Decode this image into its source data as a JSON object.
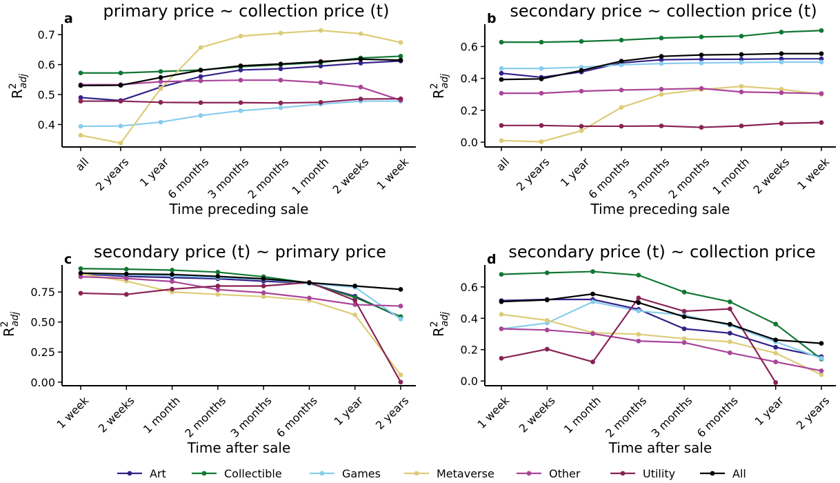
{
  "legend": {
    "placement": "bottom-center",
    "entries": [
      {
        "name": "Art",
        "color": "#332288"
      },
      {
        "name": "Collectible",
        "color": "#117733"
      },
      {
        "name": "Games",
        "color": "#88CCEE"
      },
      {
        "name": "Metaverse",
        "color": "#DDCC77"
      },
      {
        "name": "Other",
        "color": "#AA4499"
      },
      {
        "name": "Utility",
        "color": "#882255"
      },
      {
        "name": "All",
        "color": "#000000"
      }
    ]
  },
  "chart_data": [
    {
      "panel": "a",
      "type": "line",
      "title": "primary price ~ collection price (t)",
      "xlabel": "Time preceding sale",
      "ylabel": "R²adj",
      "categories": [
        "all",
        "2 years",
        "1 year",
        "6 months",
        "3 months",
        "2 months",
        "1 month",
        "2 weeks",
        "1 week"
      ],
      "ylim": [
        0.325,
        0.735
      ],
      "yticks": [
        0.4,
        0.5,
        0.6,
        0.7
      ],
      "ytick_labels": [
        "0.4",
        "0.5",
        "0.6",
        "0.7"
      ],
      "grid": false,
      "series": [
        {
          "name": "Art",
          "values": [
            0.49,
            0.48,
            0.525,
            0.56,
            0.582,
            0.586,
            0.595,
            0.605,
            0.612
          ]
        },
        {
          "name": "Collectible",
          "values": [
            0.572,
            0.572,
            0.577,
            0.582,
            0.593,
            0.6,
            0.607,
            0.622,
            0.628
          ]
        },
        {
          "name": "Games",
          "values": [
            0.394,
            0.395,
            0.408,
            0.43,
            0.446,
            0.456,
            0.468,
            0.478,
            0.478
          ]
        },
        {
          "name": "Metaverse",
          "values": [
            0.364,
            0.338,
            0.52,
            0.657,
            0.695,
            0.705,
            0.714,
            0.703,
            0.674
          ]
        },
        {
          "name": "Other",
          "values": [
            0.533,
            0.533,
            0.543,
            0.546,
            0.548,
            0.548,
            0.54,
            0.525,
            0.481
          ]
        },
        {
          "name": "Utility",
          "values": [
            0.478,
            0.478,
            0.474,
            0.473,
            0.473,
            0.472,
            0.474,
            0.485,
            0.486
          ]
        },
        {
          "name": "All",
          "values": [
            0.53,
            0.531,
            0.557,
            0.581,
            0.596,
            0.602,
            0.61,
            0.618,
            0.615
          ]
        }
      ]
    },
    {
      "panel": "b",
      "type": "line",
      "title": "secondary price ~ collection price (t)",
      "xlabel": "Time preceding sale",
      "ylabel": "R²adj",
      "categories": [
        "all",
        "2 years",
        "1 year",
        "6 months",
        "3 months",
        "2 months",
        "1 month",
        "2 weeks",
        "1 week"
      ],
      "ylim": [
        -0.03,
        0.74
      ],
      "yticks": [
        0.0,
        0.2,
        0.4,
        0.6
      ],
      "ytick_labels": [
        "0.0",
        "0.2",
        "0.4",
        "0.6"
      ],
      "grid": false,
      "series": [
        {
          "name": "Art",
          "values": [
            0.432,
            0.407,
            0.44,
            0.497,
            0.517,
            0.52,
            0.52,
            0.523,
            0.523
          ]
        },
        {
          "name": "Collectible",
          "values": [
            0.627,
            0.627,
            0.632,
            0.64,
            0.653,
            0.66,
            0.665,
            0.69,
            0.7
          ]
        },
        {
          "name": "Games",
          "values": [
            0.462,
            0.462,
            0.47,
            0.485,
            0.493,
            0.497,
            0.5,
            0.502,
            0.502
          ]
        },
        {
          "name": "Metaverse",
          "values": [
            0.01,
            0.003,
            0.072,
            0.218,
            0.3,
            0.33,
            0.35,
            0.332,
            0.3
          ]
        },
        {
          "name": "Other",
          "values": [
            0.307,
            0.307,
            0.32,
            0.327,
            0.332,
            0.337,
            0.315,
            0.31,
            0.305
          ]
        },
        {
          "name": "Utility",
          "values": [
            0.105,
            0.105,
            0.1,
            0.1,
            0.102,
            0.093,
            0.102,
            0.118,
            0.123
          ]
        },
        {
          "name": "All",
          "values": [
            0.393,
            0.397,
            0.45,
            0.508,
            0.538,
            0.547,
            0.55,
            0.555,
            0.555
          ]
        }
      ]
    },
    {
      "panel": "c",
      "type": "line",
      "title": "secondary price (t) ~ primary price",
      "xlabel": "Time after sale",
      "ylabel": "R²adj",
      "categories": [
        "1 week",
        "2 weeks",
        "1 month",
        "2 months",
        "3 months",
        "6 months",
        "1 year",
        "2 years"
      ],
      "ylim": [
        -0.03,
        0.975
      ],
      "yticks": [
        0.0,
        0.25,
        0.5,
        0.75
      ],
      "ytick_labels": [
        "0.00",
        "0.25",
        "0.50",
        "0.75"
      ],
      "grid": false,
      "series": [
        {
          "name": "Art",
          "values": [
            0.9,
            0.88,
            0.87,
            0.86,
            0.84,
            0.822,
            0.715,
            0.537
          ]
        },
        {
          "name": "Collectible",
          "values": [
            0.945,
            0.94,
            0.932,
            0.915,
            0.877,
            0.825,
            0.705,
            0.545
          ]
        },
        {
          "name": "Games",
          "values": [
            0.906,
            0.893,
            0.885,
            0.87,
            0.857,
            0.82,
            0.79,
            0.525
          ]
        },
        {
          "name": "Metaverse",
          "values": [
            0.9,
            0.84,
            0.75,
            0.73,
            0.712,
            0.68,
            0.56,
            0.06
          ]
        },
        {
          "name": "Other",
          "values": [
            0.877,
            0.863,
            0.837,
            0.77,
            0.744,
            0.7,
            0.645,
            0.633
          ]
        },
        {
          "name": "Utility",
          "values": [
            0.74,
            0.73,
            0.774,
            0.8,
            0.8,
            0.83,
            0.68,
            0.0
          ]
        },
        {
          "name": "All",
          "values": [
            0.907,
            0.9,
            0.896,
            0.88,
            0.86,
            0.827,
            0.8,
            0.772
          ]
        }
      ]
    },
    {
      "panel": "d",
      "type": "line",
      "title": "secondary price (t) ~ collection price",
      "xlabel": "Time after sale",
      "ylabel": "R²adj",
      "categories": [
        "1 week",
        "2 weeks",
        "1 month",
        "2 months",
        "3 months",
        "6 months",
        "1 year",
        "2 years"
      ],
      "ylim": [
        -0.03,
        0.74
      ],
      "yticks": [
        0.0,
        0.2,
        0.4,
        0.6
      ],
      "ytick_labels": [
        "0.0",
        "0.2",
        "0.4",
        "0.6"
      ],
      "grid": false,
      "series": [
        {
          "name": "Art",
          "values": [
            0.513,
            0.52,
            0.52,
            0.457,
            0.333,
            0.305,
            0.215,
            0.155
          ]
        },
        {
          "name": "Collectible",
          "values": [
            0.68,
            0.69,
            0.698,
            0.675,
            0.567,
            0.505,
            0.363,
            0.14
          ]
        },
        {
          "name": "Games",
          "values": [
            0.332,
            0.37,
            0.505,
            0.447,
            0.42,
            0.355,
            0.25,
            0.145
          ]
        },
        {
          "name": "Metaverse",
          "values": [
            0.425,
            0.387,
            0.308,
            0.298,
            0.27,
            0.25,
            0.178,
            0.04
          ]
        },
        {
          "name": "Other",
          "values": [
            0.333,
            0.325,
            0.302,
            0.255,
            0.245,
            0.18,
            0.122,
            0.065
          ]
        },
        {
          "name": "Utility",
          "values": [
            0.145,
            0.203,
            0.122,
            0.53,
            0.445,
            0.46,
            -0.01,
            null
          ]
        },
        {
          "name": "All",
          "values": [
            0.506,
            0.517,
            0.555,
            0.5,
            0.41,
            0.362,
            0.262,
            0.24
          ]
        }
      ]
    }
  ]
}
